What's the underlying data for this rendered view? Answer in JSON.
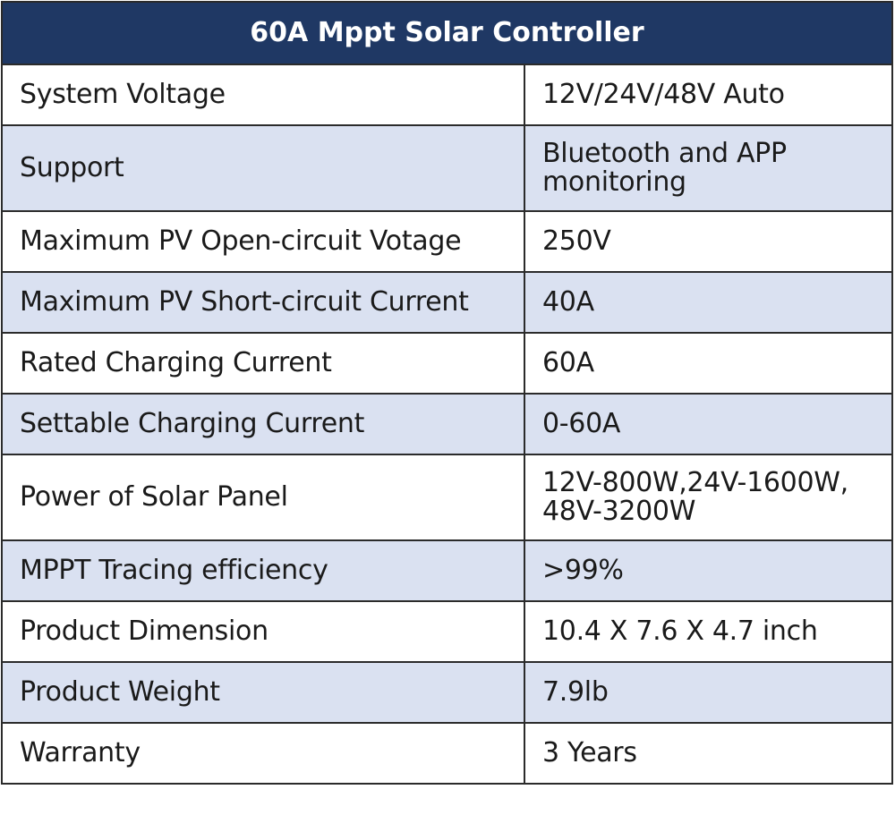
{
  "table": {
    "title": "60A Mppt Solar Controller",
    "header_color": "#1f3864",
    "stripe_color": "#dae1f1",
    "rows": [
      {
        "label": "System Voltage",
        "value": "12V/24V/48V Auto"
      },
      {
        "label": "Support",
        "value": "Bluetooth and APP monitoring"
      },
      {
        "label": "Maximum PV Open-circuit Votage",
        "value": "250V"
      },
      {
        "label": "Maximum PV Short-circuit Current",
        "value": "40A"
      },
      {
        "label": "Rated Charging Current",
        "value": "60A"
      },
      {
        "label": "Settable Charging Current",
        "value": "0-60A"
      },
      {
        "label": "Power of Solar Panel",
        "value": "12V-800W,24V-1600W, 48V-3200W"
      },
      {
        "label": "MPPT Tracing efficiency",
        "value": ">99%"
      },
      {
        "label": "Product Dimension",
        "value": "10.4 X 7.6 X 4.7 inch"
      },
      {
        "label": "Product Weight",
        "value": "7.9lb"
      },
      {
        "label": "Warranty",
        "value": "3 Years"
      }
    ]
  }
}
